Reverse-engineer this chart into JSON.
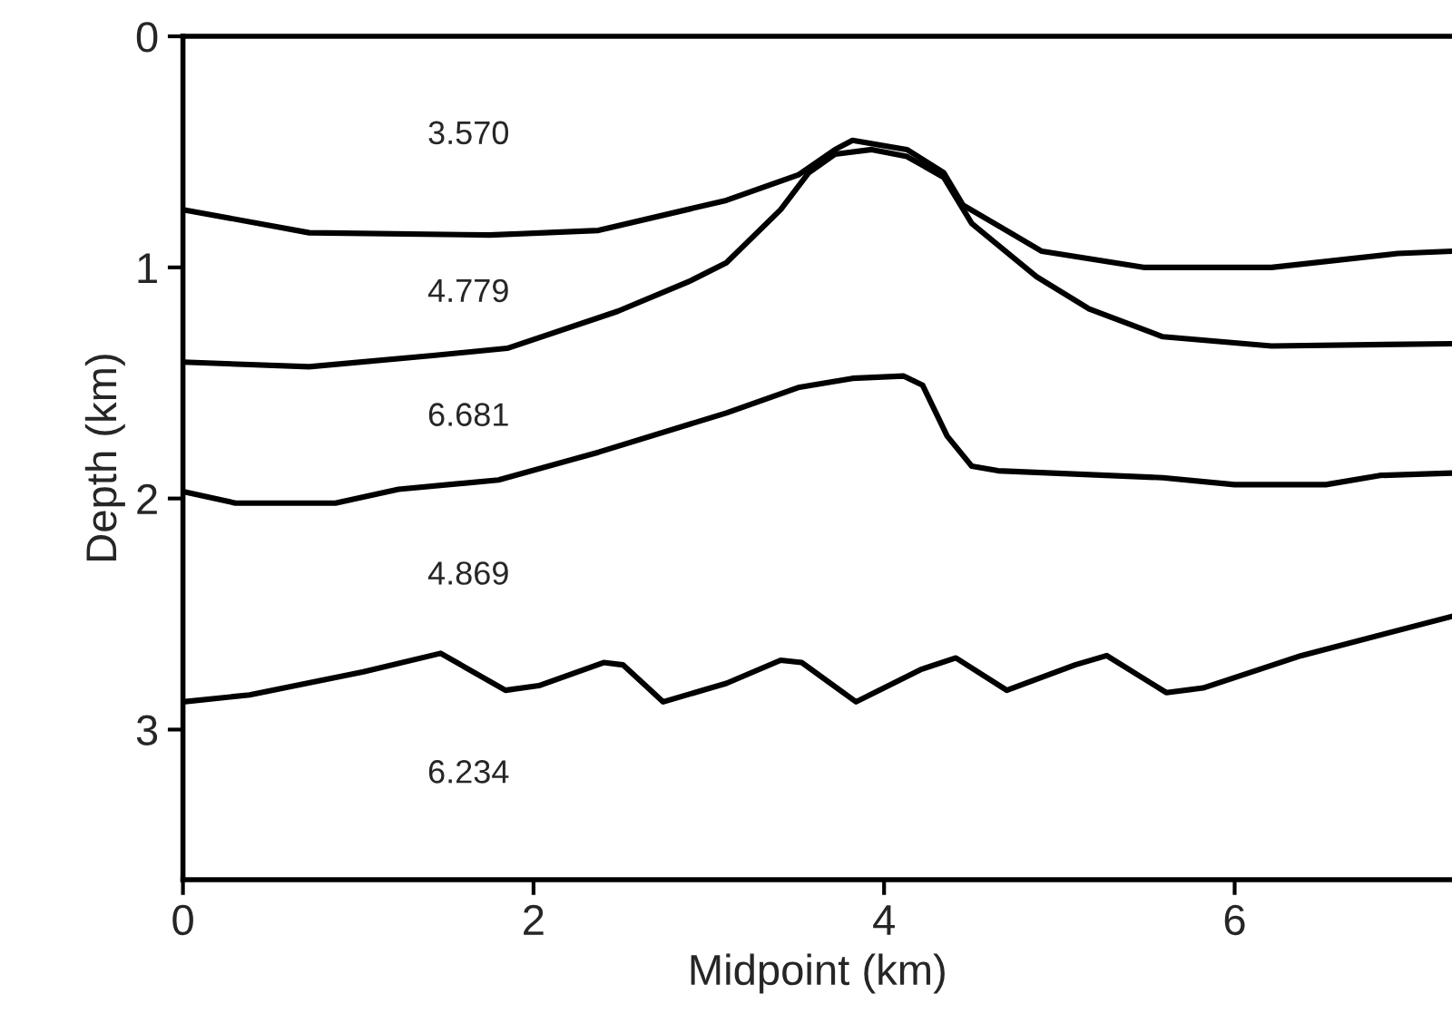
{
  "chart_data": {
    "type": "line",
    "xlabel": "Midpoint (km)",
    "ylabel": "Depth (km)",
    "xlim": [
      0,
      7.24
    ],
    "ylim": [
      3.65,
      0
    ],
    "xticks": [
      0,
      2,
      4,
      6
    ],
    "yticks": [
      0,
      1,
      2,
      3
    ],
    "grid": false,
    "line_style": "solid",
    "series": [
      {
        "color": "#000000",
        "x": [
          0,
          0.72,
          1.75,
          2.37,
          3.1,
          3.51,
          3.72,
          3.82,
          4.13,
          4.34,
          4.45,
          4.9,
          5.48,
          6.21,
          6.93,
          7.24
        ],
        "values": [
          0.75,
          0.85,
          0.86,
          0.84,
          0.71,
          0.6,
          0.49,
          0.45,
          0.49,
          0.59,
          0.73,
          0.93,
          1.0,
          1.0,
          0.94,
          0.93
        ]
      },
      {
        "color": "#000000",
        "x": [
          0,
          0.72,
          1.44,
          1.85,
          2.48,
          2.89,
          3.1,
          3.41,
          3.57,
          3.72,
          3.93,
          4.13,
          4.34,
          4.5,
          4.87,
          5.17,
          5.59,
          6.21,
          7.24
        ],
        "values": [
          1.41,
          1.43,
          1.38,
          1.35,
          1.19,
          1.06,
          0.98,
          0.75,
          0.59,
          0.51,
          0.49,
          0.52,
          0.61,
          0.81,
          1.04,
          1.18,
          1.3,
          1.34,
          1.33
        ]
      },
      {
        "color": "#000000",
        "x": [
          0,
          0.3,
          0.87,
          1.23,
          1.8,
          2.37,
          3.1,
          3.51,
          3.82,
          4.11,
          4.22,
          4.36,
          4.5,
          4.65,
          5.59,
          6.0,
          6.52,
          6.83,
          7.24
        ],
        "values": [
          1.97,
          2.02,
          2.02,
          1.96,
          1.92,
          1.8,
          1.63,
          1.52,
          1.48,
          1.47,
          1.51,
          1.73,
          1.86,
          1.88,
          1.91,
          1.94,
          1.94,
          1.9,
          1.89
        ]
      },
      {
        "color": "#000000",
        "x": [
          0,
          0.38,
          1.03,
          1.47,
          1.84,
          2.03,
          2.4,
          2.51,
          2.74,
          3.1,
          3.41,
          3.53,
          3.84,
          4.21,
          4.41,
          4.7,
          5.09,
          5.27,
          5.61,
          5.82,
          6.38,
          7.24
        ],
        "values": [
          2.88,
          2.85,
          2.75,
          2.67,
          2.83,
          2.81,
          2.71,
          2.72,
          2.88,
          2.8,
          2.7,
          2.71,
          2.88,
          2.74,
          2.69,
          2.83,
          2.72,
          2.68,
          2.84,
          2.82,
          2.68,
          2.51
        ]
      }
    ],
    "annotations": [
      "3.570",
      "4.779",
      "6.681",
      "4.869",
      "6.234"
    ]
  }
}
